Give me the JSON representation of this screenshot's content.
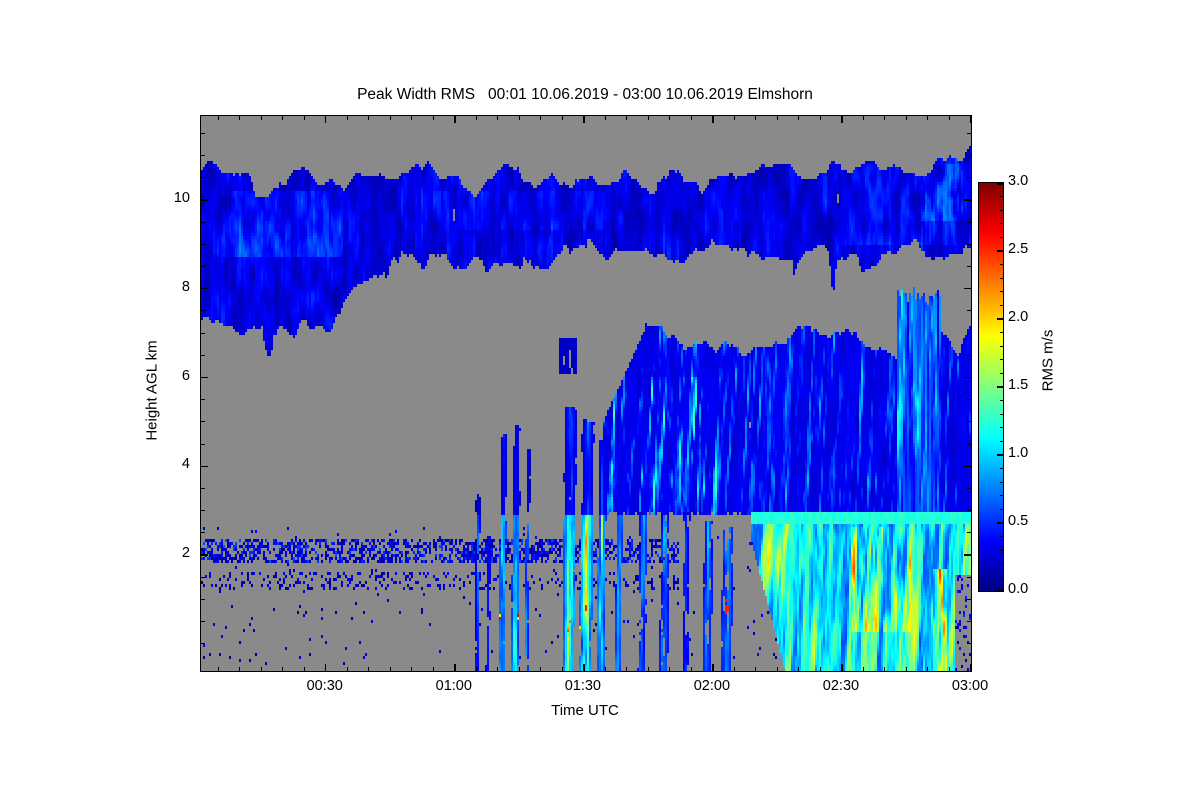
{
  "title": "Peak Width RMS   00:01 10.06.2019 - 03:00 10.06.2019 Elmshorn",
  "colors": {
    "background": "#ffffff",
    "no_data_gray": "#8a8a8a",
    "frame": "#000000",
    "text": "#000000"
  },
  "axes": {
    "x": {
      "label": "Time UTC",
      "ticks": [
        {
          "label": "00:30",
          "t": 30
        },
        {
          "label": "01:00",
          "t": 60
        },
        {
          "label": "01:30",
          "t": 90
        },
        {
          "label": "02:00",
          "t": 120
        },
        {
          "label": "02:30",
          "t": 150
        },
        {
          "label": "03:00",
          "t": 180
        }
      ],
      "minor_step_minutes": 5
    },
    "y": {
      "label": "Height AGL km",
      "ticks": [
        2,
        4,
        6,
        8,
        10
      ],
      "minor_step_km": 0.5
    },
    "colorbar": {
      "label": "RMS m/s",
      "tick_labels": [
        "3.0",
        "2.5",
        "2.0",
        "1.5",
        "1.0",
        "0.5",
        "0.0"
      ],
      "min": 0.0,
      "max": 3.0,
      "minor_step": 0.1,
      "colormap": "jet"
    }
  },
  "chart_data": {
    "type": "heatmap",
    "title": "Peak Width RMS   00:01 10.06.2019 - 03:00 10.06.2019 Elmshorn",
    "xlabel": "Time UTC",
    "ylabel": "Height AGL km",
    "value_label": "RMS m/s",
    "t_range": [
      1,
      180
    ],
    "h_range": [
      -0.61,
      11.89
    ],
    "value_range": [
      0.0,
      3.0
    ],
    "no_data": "gray",
    "features": [
      {
        "id": "upper_cloud_layer",
        "type": "layer",
        "t": [
          1,
          180
        ],
        "top_base": 10.6,
        "top_var": 0.55,
        "bottom_profile": [
          [
            1,
            7.05
          ],
          [
            32,
            7.1
          ],
          [
            46,
            8.75
          ],
          [
            180,
            8.8
          ]
        ],
        "bottom_var": 0.45,
        "v_base": 0.09,
        "v_var": 0.32,
        "bright_patches": [
          {
            "t": [
              6,
              34
            ],
            "h": [
              8.7,
              10.2
            ],
            "dv": 0.32
          },
          {
            "t": [
              55,
              95
            ],
            "h": [
              9.3,
              10.2
            ],
            "dv": 0.16
          },
          {
            "t": [
              150,
              180
            ],
            "h": [
              9.0,
              10.8
            ],
            "dv": 0.22
          },
          {
            "t": [
              168,
              178
            ],
            "h": [
              9.5,
              11.0
            ],
            "dv": 0.35
          }
        ]
      },
      {
        "id": "small_cloud",
        "type": "blob",
        "t": [
          84,
          88.5
        ],
        "h": [
          6.1,
          6.9
        ],
        "v": 0.2
      },
      {
        "id": "mid_cloud_mass",
        "type": "layer",
        "t": [
          94.5,
          180
        ],
        "top_base": 7.05,
        "top_var": 0.8,
        "top_ramp": [
          [
            94.5,
            5.0
          ],
          [
            104,
            7.05
          ]
        ],
        "bottom_km": 2.92,
        "v_base": 0.14,
        "v_var": 0.2,
        "streaks_dv": 0.9,
        "bright_plume": {
          "t": [
            163,
            173
          ],
          "h": [
            2.9,
            8.3
          ],
          "dv": 0.8
        }
      },
      {
        "id": "fall_streaks",
        "type": "streaks",
        "slant_min_per_km": 0.12,
        "items": [
          {
            "t": 65.5,
            "w": 1.2,
            "h_top": 3.3,
            "v": 0.45,
            "core": 0.7
          },
          {
            "t": 68.0,
            "w": 0.9,
            "h_top": 2.4,
            "v": 0.4,
            "core": 0.5
          },
          {
            "t": 71.5,
            "w": 1.6,
            "h_top": 4.7,
            "v": 0.7,
            "core": 1.4,
            "yellow": true
          },
          {
            "t": 74.5,
            "w": 1.8,
            "h_top": 4.9,
            "v": 0.75,
            "core": 1.5,
            "yellow": true
          },
          {
            "t": 77.2,
            "w": 1.0,
            "h_top": 4.4,
            "v": 0.55,
            "core": 0.9
          },
          {
            "t": 87.0,
            "w": 3.2,
            "h_top": 5.3,
            "v": 0.9,
            "core": 1.8,
            "yellow": true
          },
          {
            "t": 91.0,
            "w": 3.0,
            "h_top": 5.0,
            "v": 0.95,
            "core": 2.0,
            "yellow": true,
            "red": true
          },
          {
            "t": 94.5,
            "w": 2.0,
            "h_top": 4.6,
            "v": 0.8,
            "core": 1.5,
            "yellow": true
          },
          {
            "t": 98.5,
            "w": 1.6,
            "h_top": 4.2,
            "v": 0.6,
            "core": 1.1
          },
          {
            "t": 104.0,
            "w": 2.2,
            "h_top": 3.8,
            "v": 0.5,
            "core": 0.9
          },
          {
            "t": 109.0,
            "w": 2.2,
            "h_top": 3.4,
            "v": 0.5,
            "core": 0.8
          },
          {
            "t": 114.0,
            "w": 1.6,
            "h_top": 3.0,
            "v": 0.45,
            "core": 0.7
          },
          {
            "t": 119.0,
            "w": 2.2,
            "h_top": 2.8,
            "v": 0.5,
            "core": 0.8
          },
          {
            "t": 123.5,
            "w": 2.6,
            "h_top": 2.6,
            "v": 0.55,
            "core": 0.9,
            "red": true
          }
        ]
      },
      {
        "id": "melting_bright_band",
        "type": "band",
        "t": [
          129,
          180
        ],
        "h": [
          2.7,
          2.96
        ],
        "v": 1.15
      },
      {
        "id": "precip_below_band",
        "type": "precip",
        "t": [
          129,
          180
        ],
        "h_top": 2.7,
        "bottom_ramp": [
          [
            129,
            2.3
          ],
          [
            137,
            -0.7
          ]
        ],
        "v_base": 0.5,
        "v_var": 2.2,
        "streak_slant_min_per_km": 0.6,
        "yellow_zones": [
          {
            "t": [
              152,
              166
            ],
            "h": [
              0.3,
              2.6
            ],
            "dv": 0.75
          },
          {
            "t": [
              171,
              174.5
            ],
            "h": [
              -0.7,
              1.7
            ],
            "dv": 1.25
          }
        ],
        "right_gap": {
          "t": [
            176.5,
            180
          ],
          "h_below": 1.55
        }
      },
      {
        "id": "speckle_layer_2km",
        "type": "speckle",
        "seed": 1,
        "t": [
          1,
          112
        ],
        "h": [
          1.8,
          2.35
        ],
        "density": 0.55,
        "v": [
          0.05,
          0.6
        ]
      },
      {
        "id": "speckle_layer_1_4km",
        "type": "speckle",
        "seed": 2,
        "t": [
          1,
          112
        ],
        "h": [
          1.2,
          1.65
        ],
        "density": 0.2,
        "v": [
          0.05,
          0.4
        ]
      },
      {
        "id": "scattered_dots",
        "type": "speckle",
        "seed": 3,
        "t": [
          1,
          135
        ],
        "h": [
          -0.5,
          2.6
        ],
        "density": 0.015,
        "v": [
          0.05,
          0.4
        ]
      }
    ]
  }
}
